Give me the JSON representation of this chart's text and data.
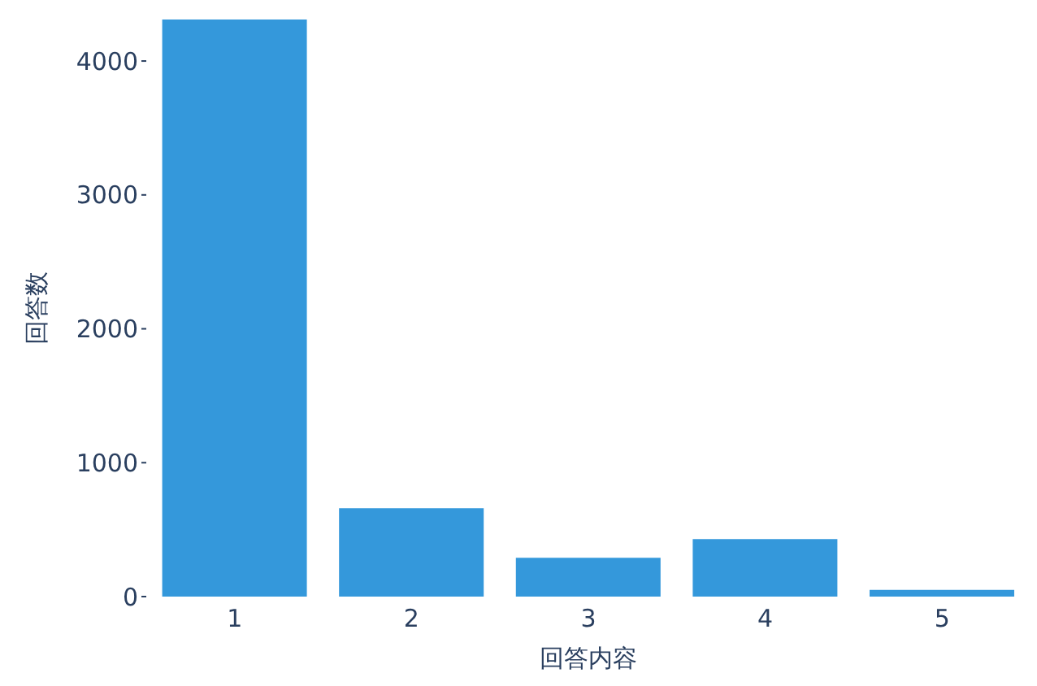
{
  "chart_data": {
    "type": "bar",
    "xlabel": "回答内容",
    "ylabel": "回答数",
    "categories": [
      "1",
      "2",
      "3",
      "4",
      "5"
    ],
    "values": [
      4310,
      660,
      290,
      430,
      50
    ],
    "color": "#3498db",
    "ylim": [
      0,
      4310
    ],
    "yticks": [
      0,
      1000,
      2000,
      3000,
      4000
    ]
  }
}
